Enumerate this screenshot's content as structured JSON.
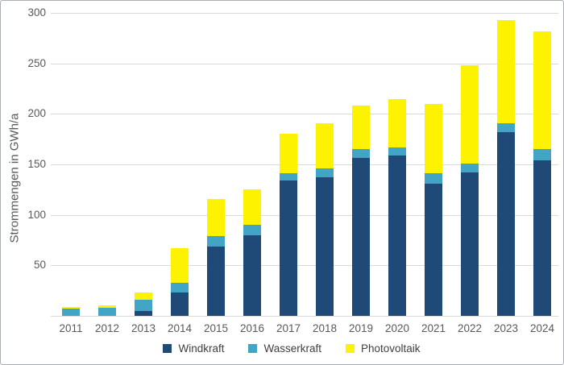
{
  "window": {
    "background": "#ffffff",
    "border_color": "#a8afb5"
  },
  "chart_data": {
    "type": "bar",
    "stacked": true,
    "title": "",
    "xlabel": "",
    "ylabel": "Strommengen in GWh/a",
    "categories": [
      "2011",
      "2012",
      "2013",
      "2014",
      "2015",
      "2016",
      "2017",
      "2018",
      "2019",
      "2020",
      "2021",
      "2022",
      "2023",
      "2024"
    ],
    "series": [
      {
        "name": "Windkraft",
        "color": "#1f4a77",
        "values": [
          0,
          0,
          5,
          23,
          69,
          80,
          134,
          137,
          156,
          159,
          131,
          142,
          182,
          154
        ]
      },
      {
        "name": "Wasserkraft",
        "color": "#43a5c6",
        "values": [
          7,
          8,
          11,
          10,
          10,
          10,
          7,
          9,
          9,
          8,
          10,
          9,
          9,
          11
        ]
      },
      {
        "name": "Photovoltaik",
        "color": "#fdf200",
        "values": [
          2,
          2,
          7,
          34,
          37,
          35,
          39,
          45,
          43,
          48,
          69,
          97,
          102,
          117
        ]
      }
    ],
    "totals": [
      9,
      10,
      23,
      67,
      116,
      125,
      180,
      191,
      208,
      215,
      210,
      248,
      293,
      282
    ],
    "ylim": [
      0,
      300
    ],
    "yticks": [
      50,
      100,
      150,
      200,
      250,
      300
    ],
    "grid": true,
    "legend_position": "bottom",
    "gridline_color": "#d9d9d9",
    "axis_line_color": "#d9d9d9",
    "axis_text_color": "#595959",
    "legend_text_color": "#3f3f3f"
  }
}
